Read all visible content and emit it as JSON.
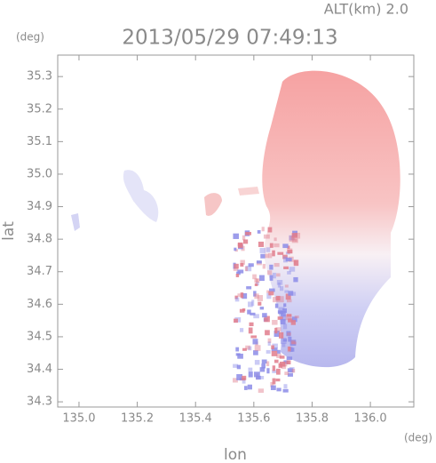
{
  "chart_data": {
    "type": "map",
    "title": "2013/05/29 07:49:13",
    "subtitle": "ALT(km) 2.0",
    "x_label": "lon",
    "y_label": "lat",
    "x_unit": "(deg)",
    "y_unit": "(deg)",
    "xlim": [
      134.927,
      136.149
    ],
    "ylim": [
      34.284,
      35.366
    ],
    "xticks": [
      {
        "value": 135,
        "label": "135.0"
      },
      135.2,
      135.4,
      135.6,
      135.8,
      {
        "value": 136,
        "label": "136.0"
      }
    ],
    "yticks": [
      34.3,
      34.4,
      34.5,
      34.6,
      34.7,
      34.8,
      34.9,
      {
        "value": 35,
        "label": "35.0"
      },
      35.1,
      35.2,
      35.3
    ]
  }
}
